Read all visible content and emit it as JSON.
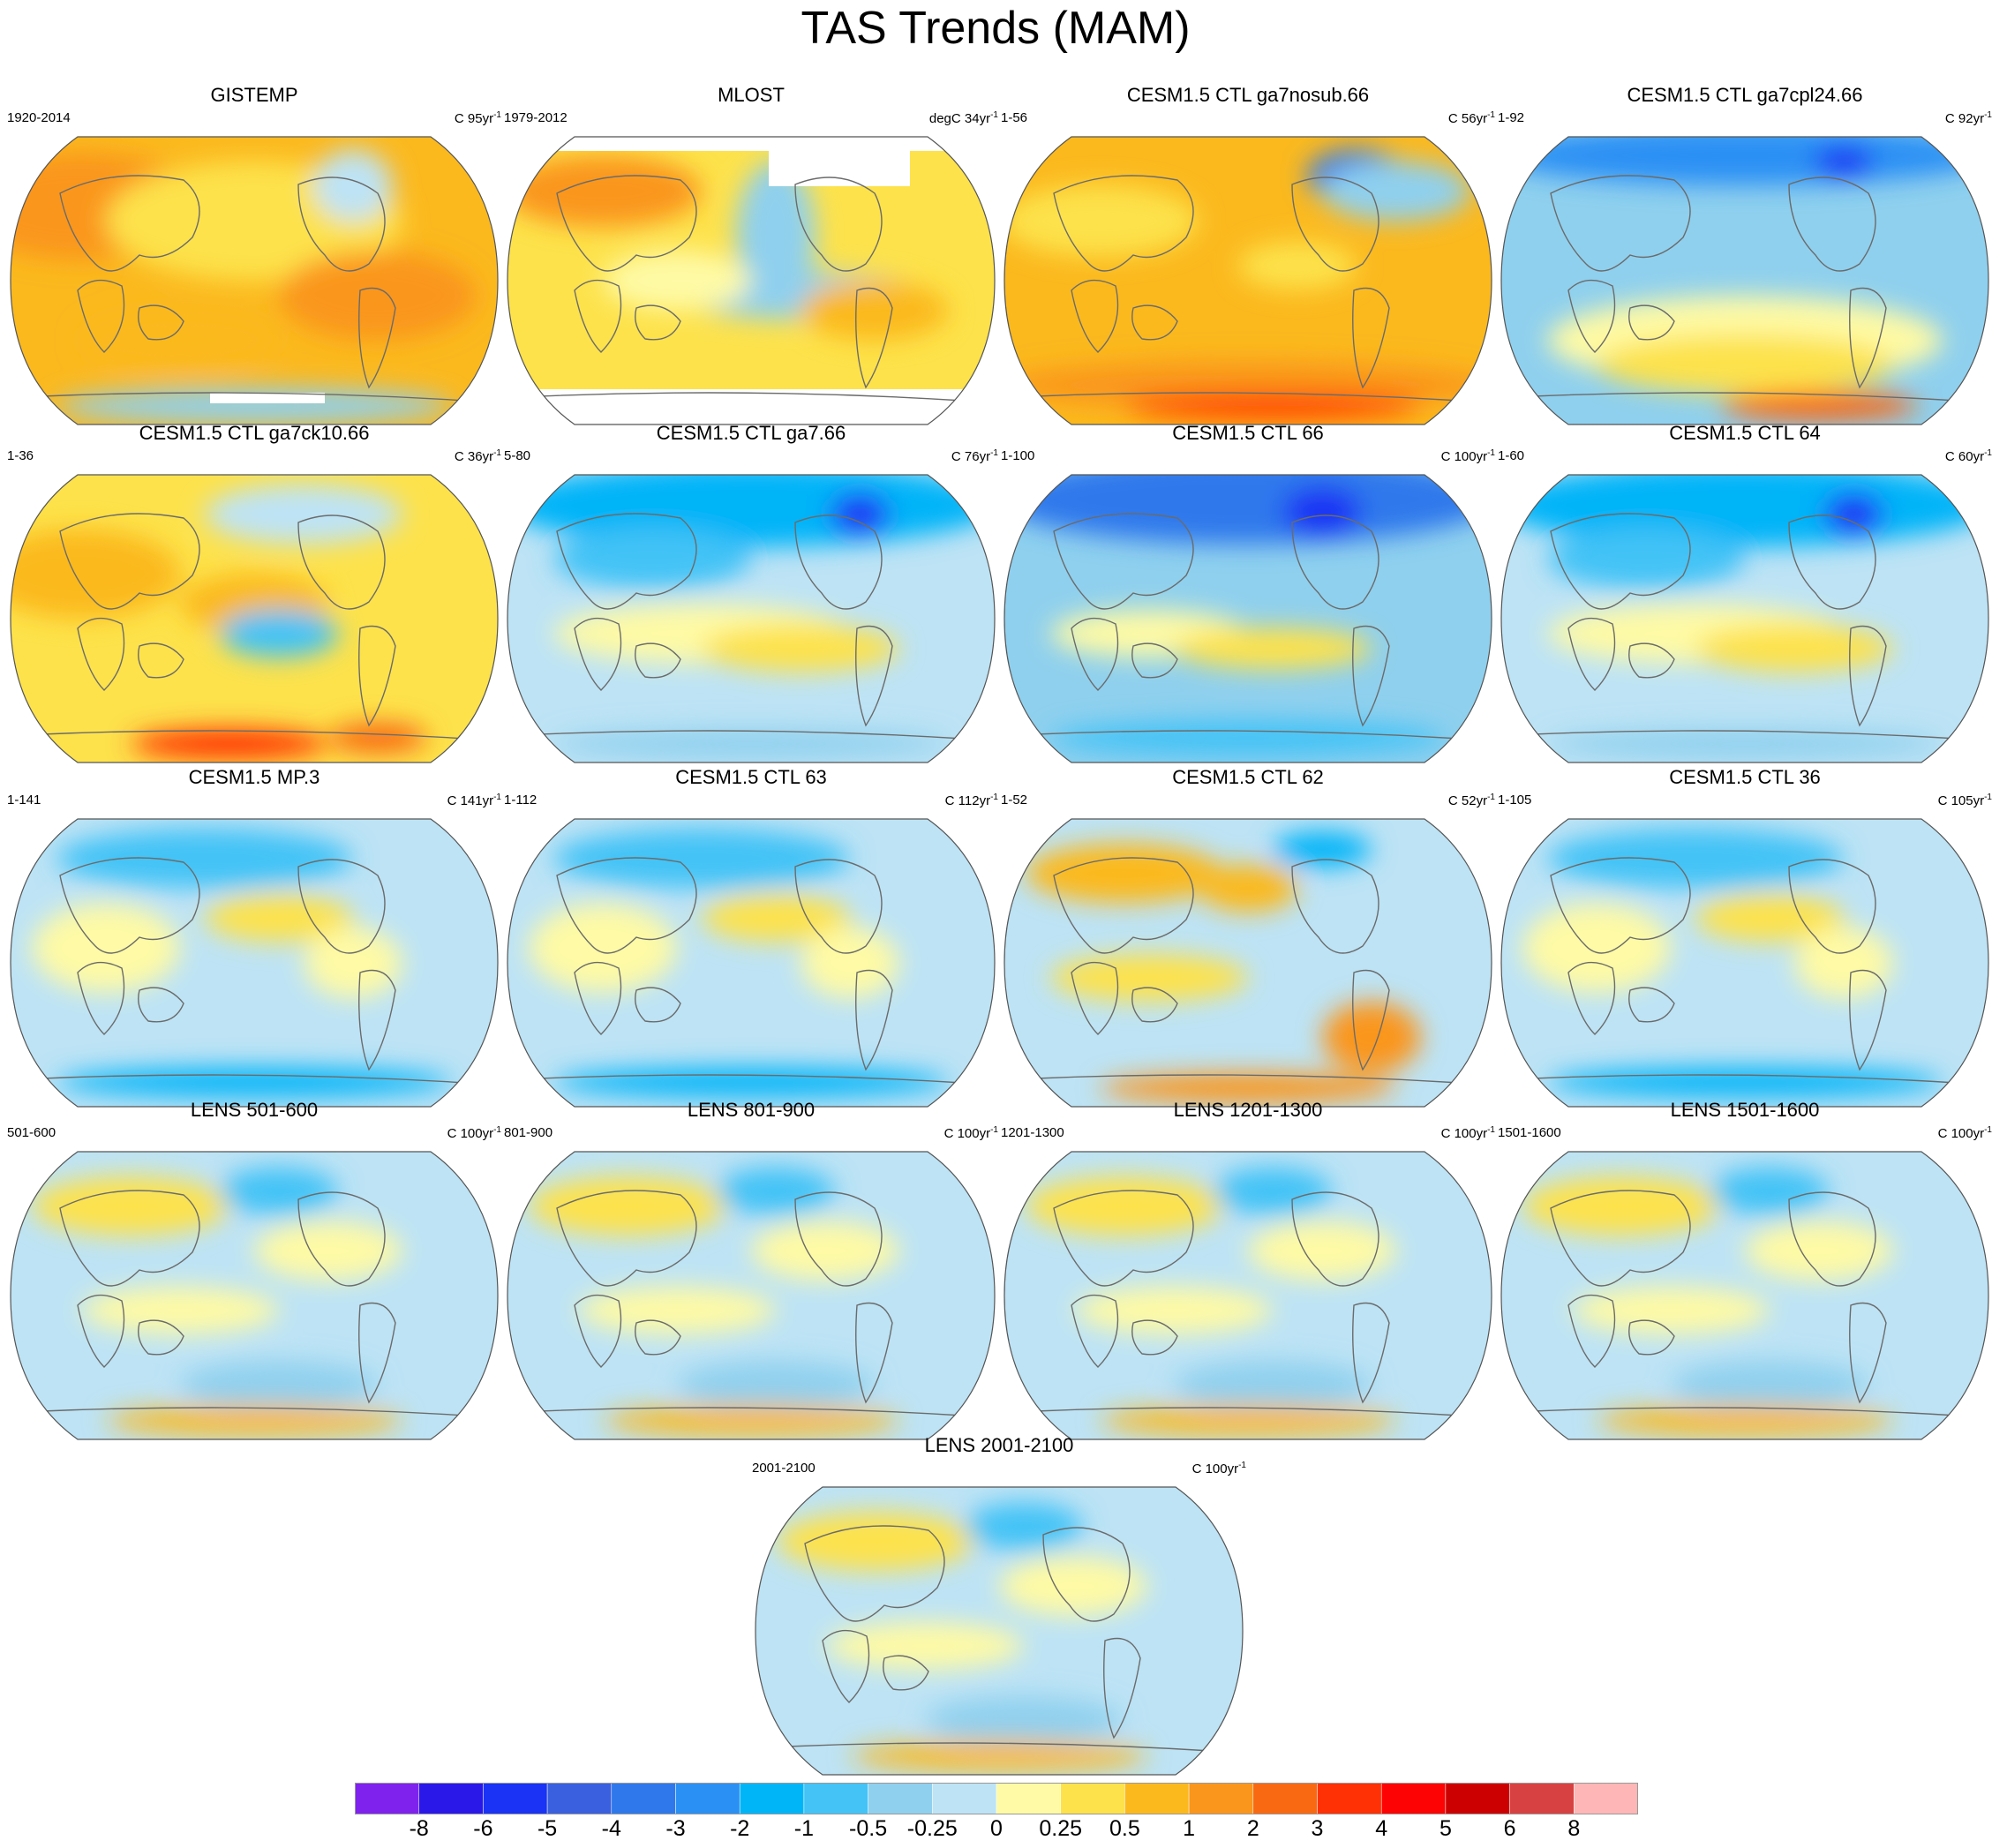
{
  "title": "TAS Trends (MAM)",
  "panels": [
    {
      "title": "GISTEMP",
      "range": "1920-2014",
      "units": "C 95yr",
      "sup": "-1",
      "pattern": "warm",
      "mask": "obs1"
    },
    {
      "title": "MLOST",
      "range": "1979-2012",
      "units": "degC 34yr",
      "sup": "-1",
      "pattern": "mlost",
      "mask": "obs2"
    },
    {
      "title": "CESM1.5 CTL ga7nosub.66",
      "range": "1-56",
      "units": "C 56yr",
      "sup": "-1",
      "pattern": "warm2",
      "mask": ""
    },
    {
      "title": "CESM1.5 CTL ga7cpl24.66",
      "range": "1-92",
      "units": "C 92yr",
      "sup": "-1",
      "pattern": "coolnorth",
      "mask": ""
    },
    {
      "title": "CESM1.5 CTL ga7ck10.66",
      "range": "1-36",
      "units": "C 36yr",
      "sup": "-1",
      "pattern": "warm3",
      "mask": ""
    },
    {
      "title": "CESM1.5 CTL ga7.66",
      "range": "5-80",
      "units": "C 76yr",
      "sup": "-1",
      "pattern": "cool1",
      "mask": ""
    },
    {
      "title": "CESM1.5 CTL 66",
      "range": "1-100",
      "units": "C 100yr",
      "sup": "-1",
      "pattern": "cool2",
      "mask": ""
    },
    {
      "title": "CESM1.5 CTL 64",
      "range": "1-60",
      "units": "C 60yr",
      "sup": "-1",
      "pattern": "cool1",
      "mask": ""
    },
    {
      "title": "CESM1.5 MP.3",
      "range": "1-141",
      "units": "C 141yr",
      "sup": "-1",
      "pattern": "mixed",
      "mask": ""
    },
    {
      "title": "CESM1.5 CTL 63",
      "range": "1-112",
      "units": "C 112yr",
      "sup": "-1",
      "pattern": "mixed",
      "mask": ""
    },
    {
      "title": "CESM1.5 CTL 62",
      "range": "1-52",
      "units": "C 52yr",
      "sup": "-1",
      "pattern": "mixedwarm",
      "mask": ""
    },
    {
      "title": "CESM1.5 CTL 36",
      "range": "1-105",
      "units": "C 105yr",
      "sup": "-1",
      "pattern": "mixed",
      "mask": ""
    },
    {
      "title": "LENS 501-600",
      "range": "501-600",
      "units": "C 100yr",
      "sup": "-1",
      "pattern": "lens",
      "mask": ""
    },
    {
      "title": "LENS 801-900",
      "range": "801-900",
      "units": "C 100yr",
      "sup": "-1",
      "pattern": "lens",
      "mask": ""
    },
    {
      "title": "LENS 1201-1300",
      "range": "1201-1300",
      "units": "C 100yr",
      "sup": "-1",
      "pattern": "lens",
      "mask": ""
    },
    {
      "title": "LENS 1501-1600",
      "range": "1501-1600",
      "units": "C 100yr",
      "sup": "-1",
      "pattern": "lens",
      "mask": ""
    },
    {
      "title": "LENS 2001-2100",
      "range": "2001-2100",
      "units": "C 100yr",
      "sup": "-1",
      "pattern": "lens",
      "mask": ""
    }
  ],
  "colorbar": {
    "colors": [
      "#7f22ee",
      "#2a18e8",
      "#1a33f4",
      "#3a60df",
      "#2e78ec",
      "#2a90f4",
      "#00b4f8",
      "#43c3f6",
      "#8fd0ee",
      "#bde3f5",
      "#fefaa5",
      "#fde24b",
      "#fbb91e",
      "#fa961b",
      "#f86912",
      "#ff3105",
      "#fd0303",
      "#cc0000",
      "#d84141",
      "#ffb6b6"
    ],
    "labels": [
      "-8",
      "-6",
      "-5",
      "-4",
      "-3",
      "-2",
      "-1",
      "-0.5",
      "-0.25",
      "0",
      "0.25",
      "0.5",
      "1",
      "2",
      "3",
      "4",
      "5",
      "6",
      "8"
    ]
  },
  "chart_data": {
    "type": "heatmap",
    "title": "TAS Trends (MAM)",
    "variable": "TAS",
    "season": "MAM",
    "contour_levels": [
      -8,
      -6,
      -5,
      -4,
      -3,
      -2,
      -1,
      -0.5,
      -0.25,
      0,
      0.25,
      0.5,
      1,
      2,
      3,
      4,
      5,
      6,
      8
    ],
    "panel_titles": [
      "GISTEMP",
      "MLOST",
      "CESM1.5 CTL ga7nosub.66",
      "CESM1.5 CTL ga7cpl24.66",
      "CESM1.5 CTL ga7ck10.66",
      "CESM1.5 CTL ga7.66",
      "CESM1.5 CTL 66",
      "CESM1.5 CTL 64",
      "CESM1.5 MP.3",
      "CESM1.5 CTL 63",
      "CESM1.5 CTL 62",
      "CESM1.5 CTL 36",
      "LENS 501-600",
      "LENS 801-900",
      "LENS 1201-1300",
      "LENS 1501-1600",
      "LENS 2001-2100"
    ]
  }
}
